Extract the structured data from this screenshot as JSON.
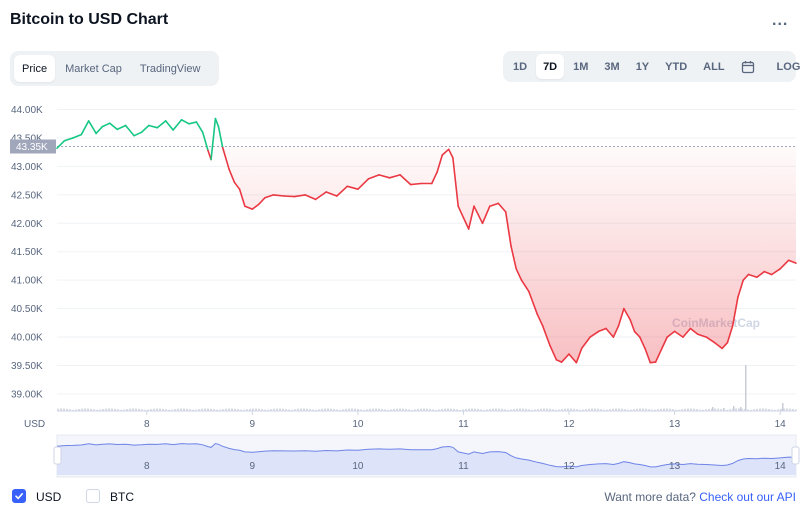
{
  "header": {
    "title": "Bitcoin to USD Chart",
    "more_label": "..."
  },
  "view_tabs": [
    {
      "label": "Price",
      "active": true
    },
    {
      "label": "Market Cap",
      "active": false
    },
    {
      "label": "TradingView",
      "active": false
    }
  ],
  "range_tabs": [
    {
      "label": "1D",
      "active": false
    },
    {
      "label": "7D",
      "active": true
    },
    {
      "label": "1M",
      "active": false
    },
    {
      "label": "3M",
      "active": false
    },
    {
      "label": "1Y",
      "active": false
    },
    {
      "label": "YTD",
      "active": false
    },
    {
      "label": "ALL",
      "active": false
    }
  ],
  "log_label": "LOG",
  "icons": {
    "calendar": "calendar-icon",
    "more": "more-icon",
    "check": "check-icon"
  },
  "chart_data": {
    "type": "line",
    "y_tick_labels": [
      "44.00K",
      "43.50K",
      "43.00K",
      "42.50K",
      "42.00K",
      "41.50K",
      "41.00K",
      "40.50K",
      "40.00K",
      "39.50K",
      "39.00K"
    ],
    "y_ticks": [
      44000,
      43500,
      43000,
      42500,
      42000,
      41500,
      41000,
      40500,
      40000,
      39500,
      39000
    ],
    "x_tick_labels": [
      "8",
      "9",
      "10",
      "11",
      "12",
      "13",
      "14"
    ],
    "x_ticks": [
      8,
      9,
      10,
      11,
      12,
      13,
      14
    ],
    "xlim": [
      7.15,
      14.15
    ],
    "ylim": [
      38700,
      44150
    ],
    "reference_price": 43350,
    "reference_label": "43.35K",
    "axis_unit": "USD",
    "watermark": "CoinMarketCap",
    "grid": true,
    "colors": {
      "up": "#16c784",
      "down": "#ea3943",
      "nav_line": "#6f84e8",
      "nav_fill": "#dde3f8"
    },
    "series": [
      {
        "values": [
          [
            7.15,
            43320
          ],
          [
            7.22,
            43450
          ],
          [
            7.3,
            43500
          ],
          [
            7.38,
            43560
          ],
          [
            7.45,
            43800
          ],
          [
            7.52,
            43580
          ],
          [
            7.58,
            43700
          ],
          [
            7.65,
            43760
          ],
          [
            7.72,
            43650
          ],
          [
            7.8,
            43720
          ],
          [
            7.88,
            43540
          ],
          [
            7.95,
            43600
          ],
          [
            8.02,
            43720
          ],
          [
            8.1,
            43680
          ],
          [
            8.18,
            43800
          ],
          [
            8.25,
            43640
          ],
          [
            8.33,
            43820
          ],
          [
            8.4,
            43750
          ],
          [
            8.47,
            43780
          ],
          [
            8.53,
            43600
          ],
          [
            8.58,
            43280
          ],
          [
            8.61,
            43120
          ],
          [
            8.65,
            43840
          ],
          [
            8.68,
            43700
          ],
          [
            8.72,
            43330
          ],
          [
            8.78,
            42950
          ],
          [
            8.83,
            42720
          ],
          [
            8.88,
            42600
          ],
          [
            8.93,
            42300
          ],
          [
            9.0,
            42250
          ],
          [
            9.06,
            42330
          ],
          [
            9.12,
            42450
          ],
          [
            9.2,
            42500
          ],
          [
            9.3,
            42480
          ],
          [
            9.4,
            42470
          ],
          [
            9.5,
            42500
          ],
          [
            9.6,
            42420
          ],
          [
            9.7,
            42550
          ],
          [
            9.8,
            42480
          ],
          [
            9.9,
            42650
          ],
          [
            10.0,
            42600
          ],
          [
            10.1,
            42780
          ],
          [
            10.2,
            42850
          ],
          [
            10.3,
            42800
          ],
          [
            10.4,
            42850
          ],
          [
            10.5,
            42680
          ],
          [
            10.6,
            42700
          ],
          [
            10.7,
            42700
          ],
          [
            10.75,
            42900
          ],
          [
            10.8,
            43200
          ],
          [
            10.86,
            43300
          ],
          [
            10.9,
            43150
          ],
          [
            10.95,
            42300
          ],
          [
            11.0,
            42100
          ],
          [
            11.05,
            41900
          ],
          [
            11.1,
            42300
          ],
          [
            11.18,
            42000
          ],
          [
            11.25,
            42300
          ],
          [
            11.33,
            42350
          ],
          [
            11.4,
            42200
          ],
          [
            11.45,
            41600
          ],
          [
            11.5,
            41200
          ],
          [
            11.55,
            41000
          ],
          [
            11.62,
            40800
          ],
          [
            11.7,
            40400
          ],
          [
            11.75,
            40200
          ],
          [
            11.82,
            39850
          ],
          [
            11.88,
            39600
          ],
          [
            11.93,
            39560
          ],
          [
            12.0,
            39700
          ],
          [
            12.07,
            39550
          ],
          [
            12.12,
            39800
          ],
          [
            12.2,
            40000
          ],
          [
            12.28,
            40100
          ],
          [
            12.35,
            40150
          ],
          [
            12.42,
            40000
          ],
          [
            12.47,
            40200
          ],
          [
            12.52,
            40500
          ],
          [
            12.58,
            40300
          ],
          [
            12.62,
            40100
          ],
          [
            12.67,
            40000
          ],
          [
            12.72,
            39800
          ],
          [
            12.77,
            39550
          ],
          [
            12.82,
            39560
          ],
          [
            12.88,
            39800
          ],
          [
            12.93,
            40000
          ],
          [
            13.0,
            40100
          ],
          [
            13.08,
            40000
          ],
          [
            13.15,
            40150
          ],
          [
            13.22,
            40050
          ],
          [
            13.3,
            40000
          ],
          [
            13.38,
            39900
          ],
          [
            13.45,
            39800
          ],
          [
            13.5,
            39900
          ],
          [
            13.55,
            40200
          ],
          [
            13.6,
            40700
          ],
          [
            13.65,
            41000
          ],
          [
            13.7,
            41100
          ],
          [
            13.78,
            41050
          ],
          [
            13.85,
            41150
          ],
          [
            13.92,
            41100
          ],
          [
            14.0,
            41200
          ],
          [
            14.08,
            41350
          ],
          [
            14.15,
            41300
          ]
        ]
      }
    ]
  },
  "footer": {
    "usd_label": "USD",
    "btc_label": "BTC",
    "more_text": "Want more data? ",
    "more_link": "Check out our API"
  }
}
